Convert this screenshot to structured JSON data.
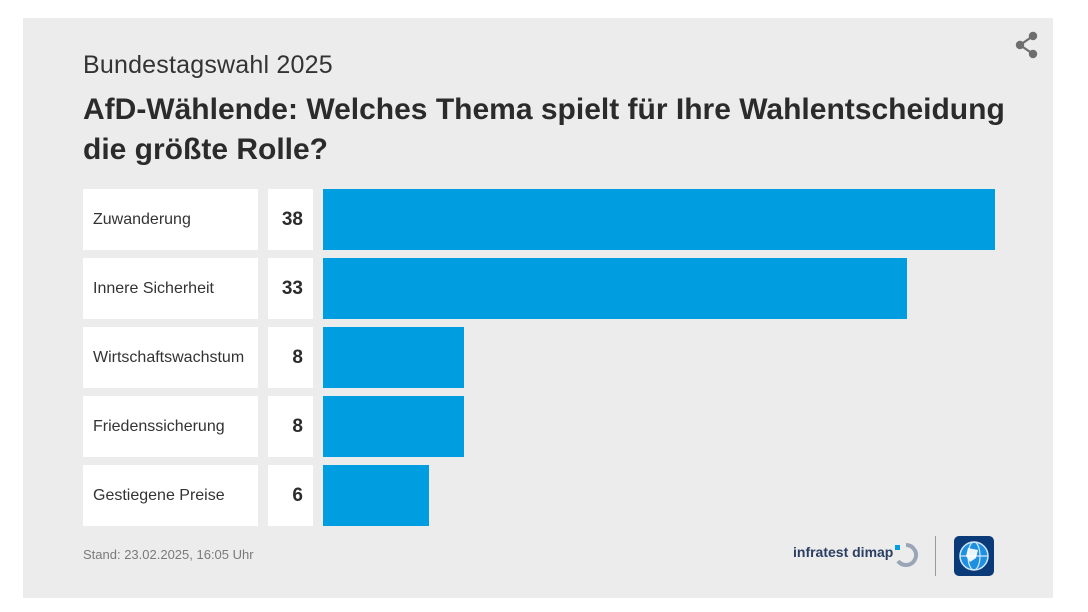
{
  "header": {
    "overline": "Bundestagswahl 2025",
    "title": "AfD-Wählende: Welches Thema spielt für Ihre Wahlentscheidung die größte Rolle?"
  },
  "chart_data": {
    "type": "bar",
    "orientation": "horizontal",
    "title": "AfD-Wählende: Welches Thema spielt für Ihre Wahlentscheidung die größte Rolle?",
    "categories": [
      "Zuwanderung",
      "Innere Sicherheit",
      "Wirtschaftswachstum",
      "Friedenssicherung",
      "Gestiegene Preise"
    ],
    "values": [
      38,
      33,
      8,
      8,
      6
    ],
    "value_labels": [
      "38",
      "33",
      "8",
      "8",
      "6"
    ],
    "xlim": [
      0,
      38
    ],
    "grid": false,
    "bar_color": "#009de0"
  },
  "footer": {
    "date": "Stand:  23.02.2025, 16:05 Uhr",
    "brand": "infratest dimap"
  },
  "icons": {
    "share": "share-icon",
    "brand": "infratest-dimap-logo",
    "tagesschau": "tagesschau-globe-logo"
  },
  "colors": {
    "background": "#ececec",
    "bar": "#009de0",
    "cell": "#ffffff",
    "text": "#2b2b2b"
  }
}
